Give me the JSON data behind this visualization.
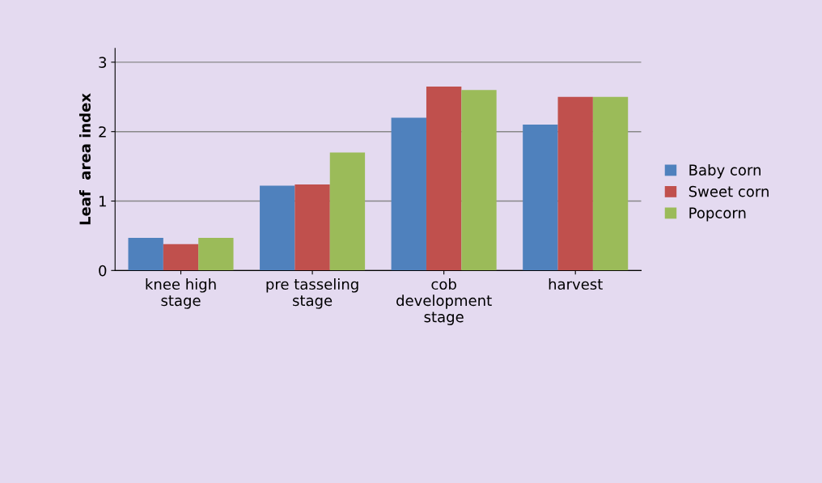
{
  "chart_data": {
    "type": "bar",
    "ylabel": "Leaf  area index",
    "categories": [
      "knee high\nstage",
      "pre tasseling\nstage",
      "cob\ndevelopment\nstage",
      "harvest"
    ],
    "series": [
      {
        "name": "Baby corn",
        "color": "#4f81bd",
        "values": [
          0.47,
          1.22,
          2.2,
          2.1
        ]
      },
      {
        "name": "Sweet corn",
        "color": "#c0504d",
        "values": [
          0.38,
          1.24,
          2.65,
          2.5
        ]
      },
      {
        "name": "Popcorn",
        "color": "#9bbb59",
        "values": [
          0.47,
          1.7,
          2.6,
          2.5
        ]
      }
    ],
    "ylim": [
      0,
      3.2
    ],
    "yticks": [
      0,
      1,
      2,
      3
    ],
    "grid": "y",
    "legend": "right"
  }
}
